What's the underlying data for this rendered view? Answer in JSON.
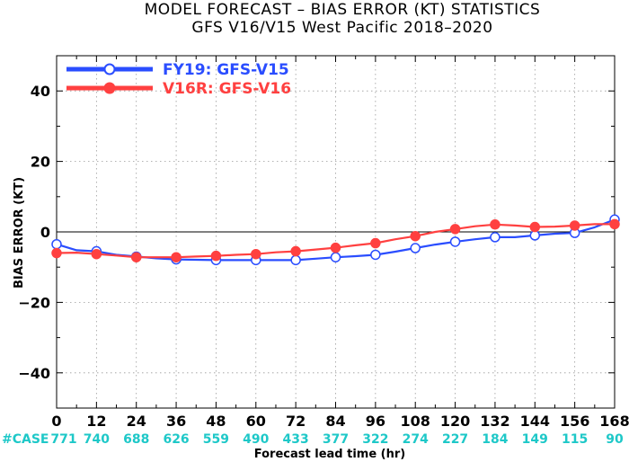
{
  "chart_data": {
    "type": "line",
    "title": "MODEL FORECAST – BIAS ERROR (KT) STATISTICS",
    "subtitle": "GFS V16/V15 West Pacific 2018–2020",
    "xlabel": "Forecast lead time (hr)",
    "ylabel": "BIAS ERROR (KT)",
    "xlim": [
      0,
      168
    ],
    "ylim": [
      -50,
      50
    ],
    "x_ticks": [
      0,
      12,
      24,
      36,
      48,
      60,
      72,
      84,
      96,
      108,
      120,
      132,
      144,
      156,
      168
    ],
    "y_ticks": [
      -40,
      -20,
      0,
      20,
      40
    ],
    "grid": true,
    "legend_position": "top-left",
    "case_prefix": "#CASE",
    "case_counts": [
      771,
      740,
      688,
      626,
      559,
      490,
      433,
      377,
      322,
      274,
      227,
      184,
      149,
      115,
      90
    ],
    "series": [
      {
        "name": "FY19: GFS-V15",
        "color": "#2a4dff",
        "marker": "open-circle",
        "x": [
          0,
          6,
          12,
          18,
          24,
          30,
          36,
          42,
          48,
          54,
          60,
          66,
          72,
          78,
          84,
          90,
          96,
          102,
          108,
          114,
          120,
          126,
          132,
          138,
          144,
          150,
          156,
          162,
          168
        ],
        "y": [
          -3.5,
          -5.2,
          -5.5,
          -6.5,
          -7.0,
          -7.5,
          -7.8,
          -7.9,
          -8.0,
          -8.0,
          -8.0,
          -8.0,
          -8.0,
          -7.6,
          -7.2,
          -6.9,
          -6.5,
          -5.6,
          -4.6,
          -3.6,
          -2.8,
          -2.1,
          -1.5,
          -1.5,
          -1.0,
          -0.5,
          -0.3,
          1.3,
          3.5
        ],
        "marker_x": [
          0,
          12,
          24,
          36,
          48,
          60,
          72,
          84,
          96,
          108,
          120,
          132,
          144,
          156,
          168
        ]
      },
      {
        "name": "V16R: GFS-V16",
        "color": "#ff4040",
        "marker": "filled-circle",
        "x": [
          0,
          6,
          12,
          18,
          24,
          30,
          36,
          42,
          48,
          54,
          60,
          66,
          72,
          78,
          84,
          90,
          96,
          102,
          108,
          114,
          120,
          126,
          132,
          138,
          144,
          150,
          156,
          162,
          168
        ],
        "y": [
          -6.0,
          -5.9,
          -6.3,
          -6.7,
          -7.2,
          -7.2,
          -7.2,
          -7.0,
          -6.8,
          -6.5,
          -6.3,
          -5.8,
          -5.5,
          -5.0,
          -4.5,
          -3.8,
          -3.2,
          -2.1,
          -1.2,
          0.0,
          0.8,
          1.6,
          2.1,
          1.8,
          1.4,
          1.5,
          1.8,
          2.2,
          2.2
        ],
        "marker_x": [
          0,
          12,
          24,
          36,
          48,
          60,
          72,
          84,
          96,
          108,
          120,
          132,
          144,
          156,
          168
        ]
      }
    ]
  }
}
